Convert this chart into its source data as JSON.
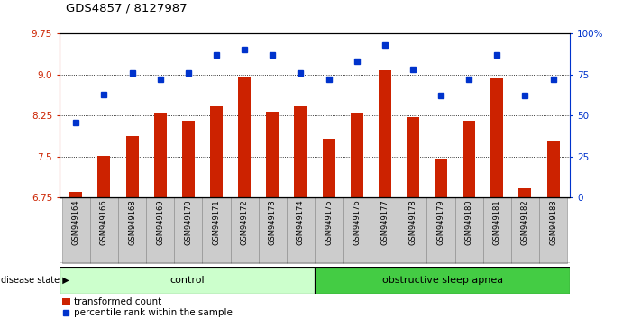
{
  "title": "GDS4857 / 8127987",
  "samples": [
    "GSM949164",
    "GSM949166",
    "GSM949168",
    "GSM949169",
    "GSM949170",
    "GSM949171",
    "GSM949172",
    "GSM949173",
    "GSM949174",
    "GSM949175",
    "GSM949176",
    "GSM949177",
    "GSM949178",
    "GSM949179",
    "GSM949180",
    "GSM949181",
    "GSM949182",
    "GSM949183"
  ],
  "bar_values": [
    6.85,
    7.52,
    7.88,
    8.3,
    8.15,
    8.42,
    8.97,
    8.32,
    8.42,
    7.82,
    8.3,
    9.07,
    8.23,
    7.47,
    8.15,
    8.93,
    6.93,
    7.8
  ],
  "blue_pct": [
    46,
    63,
    76,
    72,
    76,
    87,
    90,
    87,
    76,
    72,
    83,
    93,
    78,
    62,
    72,
    87,
    62,
    72
  ],
  "control_count": 9,
  "ylim": [
    6.75,
    9.75
  ],
  "yticks": [
    6.75,
    7.5,
    8.25,
    9.0,
    9.75
  ],
  "y2ticks": [
    0,
    25,
    50,
    75,
    100
  ],
  "bar_color": "#cc2200",
  "blue_color": "#0033cc",
  "control_color": "#ccffcc",
  "osa_color": "#44cc44",
  "label_bg": "#cccccc",
  "legend_bar_label": "transformed count",
  "legend_blue_label": "percentile rank within the sample"
}
